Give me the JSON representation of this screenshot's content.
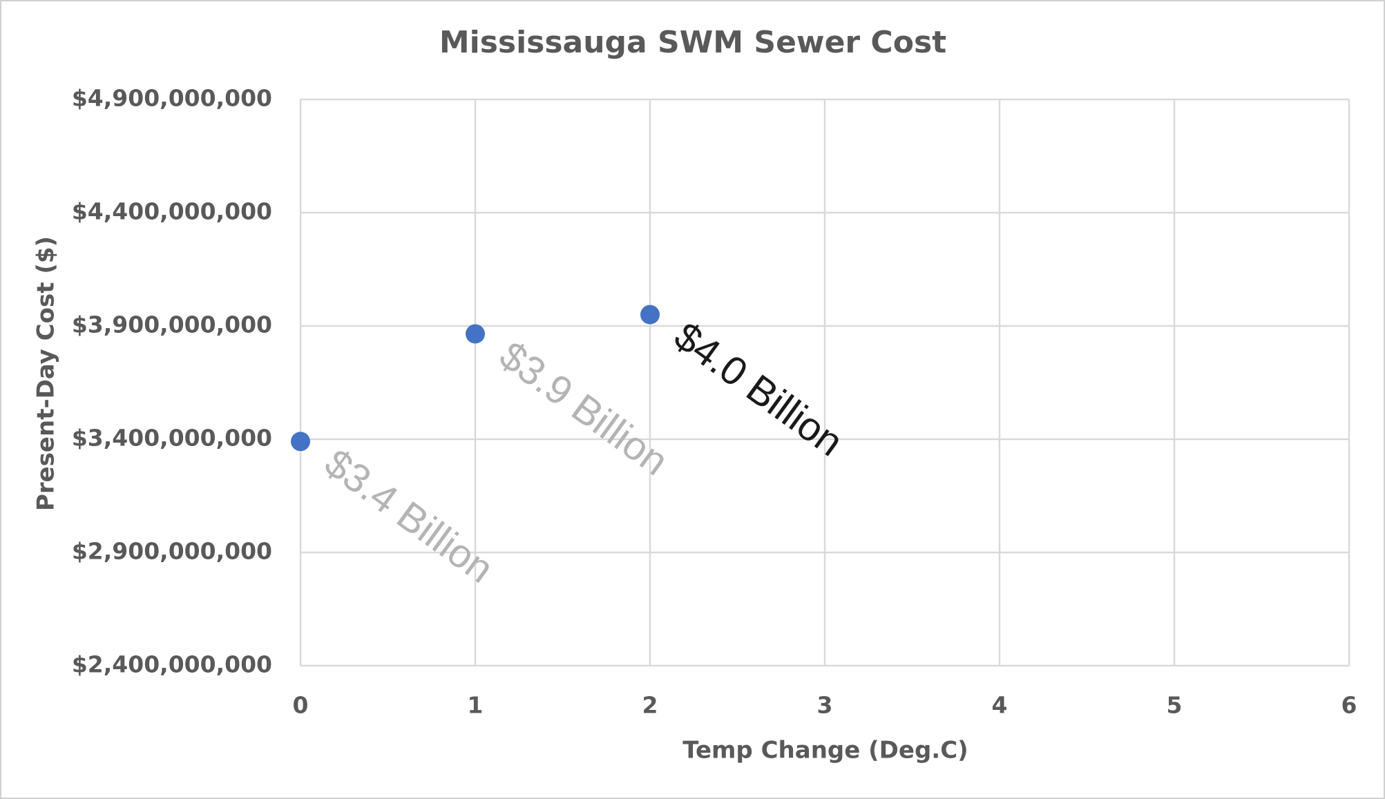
{
  "chart_data": {
    "type": "scatter",
    "title": "Mississauga SWM Sewer Cost",
    "x_label": "Temp Change (Deg.C)",
    "y_label": "Present-Day Cost ($)",
    "x": [
      0,
      1,
      2
    ],
    "series": [
      {
        "color": "#4472c4",
        "values": [
          3390000000,
          3865000000,
          3950000000
        ],
        "value_labels": [
          "$3.4 Billion",
          "$3.9 Billion",
          "$4.0 Billion"
        ],
        "value_label_colors": [
          "#b4b4b4",
          "#b4b4b4",
          "#1a1a1a"
        ]
      }
    ],
    "xlim": [
      0,
      6
    ],
    "xticks": [
      0,
      1,
      2,
      3,
      4,
      5,
      6
    ],
    "ylim": [
      2400000000,
      4900000000
    ],
    "yticks": [
      {
        "value": 2400000000,
        "label": "$2,400,000,000"
      },
      {
        "value": 2900000000,
        "label": "$2,900,000,000"
      },
      {
        "value": 3400000000,
        "label": "$3,400,000,000"
      },
      {
        "value": 3900000000,
        "label": "$3,900,000,000"
      },
      {
        "value": 4400000000,
        "label": "$4,400,000,000"
      },
      {
        "value": 4900000000,
        "label": "$4,900,000,000"
      }
    ],
    "grid": true
  }
}
